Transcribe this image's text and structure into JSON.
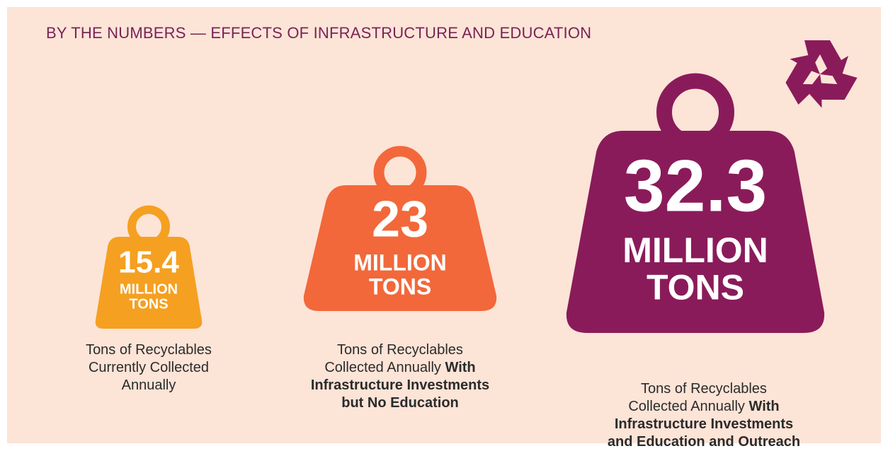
{
  "title": "BY THE NUMBERS — EFFECTS OF INFRASTRUCTURE AND EDUCATION",
  "items": [
    {
      "value": 15.4,
      "unit_lines": [
        "MILLION",
        "TONS"
      ],
      "color": "#f5a020",
      "description": [
        [
          {
            "text": "Tons of Recyclables",
            "bold": false
          }
        ],
        [
          {
            "text": "Currently Collected",
            "bold": false
          }
        ],
        [
          {
            "text": "Annually",
            "bold": false
          }
        ]
      ]
    },
    {
      "value": 23,
      "unit_lines": [
        "MILLION",
        "TONS"
      ],
      "color": "#f2683a",
      "description": [
        [
          {
            "text": "Tons of Recyclables",
            "bold": false
          }
        ],
        [
          {
            "text": "Collected Annually",
            "bold": false
          },
          {
            "text": "With",
            "bold": true
          }
        ],
        [
          {
            "text": "Infrastructure Investments",
            "bold": true
          }
        ],
        [
          {
            "text": "but No Education",
            "bold": true
          }
        ]
      ]
    },
    {
      "value": 32.3,
      "unit_lines": [
        "MILLION",
        "TONS"
      ],
      "color": "#8a1b5a",
      "description": [
        [
          {
            "text": "Tons of Recyclables",
            "bold": false
          }
        ],
        [
          {
            "text": "Collected Annually",
            "bold": false
          },
          {
            "text": "With",
            "bold": true
          }
        ],
        [
          {
            "text": "Infrastructure Investments",
            "bold": true
          }
        ],
        [
          {
            "text": "and Education and Outreach",
            "bold": true
          }
        ]
      ]
    }
  ]
}
